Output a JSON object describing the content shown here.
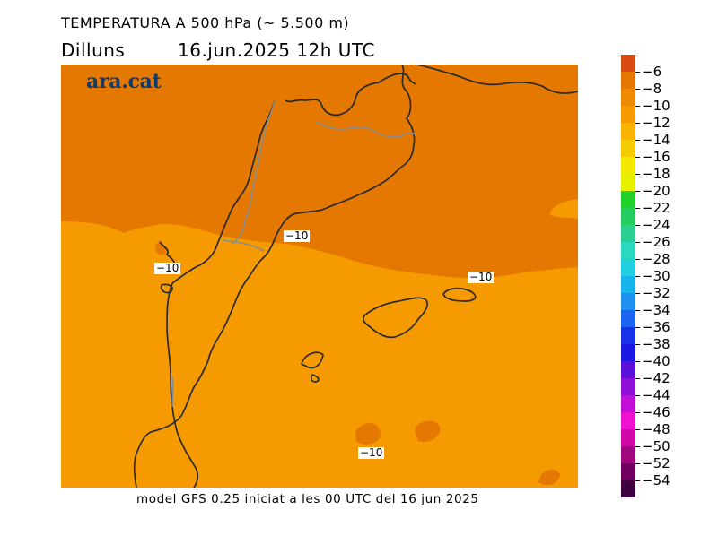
{
  "header": {
    "title": "TEMPERATURA A 500 hPa (~ 5.500 m)",
    "day": "Dilluns",
    "datetime": "16.jun.2025  12h  UTC"
  },
  "brand": {
    "logo_text": "ara.cat"
  },
  "footer": {
    "text": "model GFS 0.25 iniciat a les 00 UTC del 16 jun 2025"
  },
  "map": {
    "colors": {
      "warm_band": "#E47800",
      "cool_band": "#F59A00",
      "coastline": "#2a2a2a",
      "border": "#8c8c8c"
    },
    "contour_labels": [
      "−10",
      "−10",
      "−10",
      "−10"
    ]
  },
  "colorbar": {
    "labels": [
      "−6",
      "−8",
      "−10",
      "−12",
      "−14",
      "−16",
      "−18",
      "−20",
      "−22",
      "−24",
      "−26",
      "−28",
      "−30",
      "−32",
      "−34",
      "−36",
      "−38",
      "−40",
      "−42",
      "−44",
      "−46",
      "−48",
      "−50",
      "−52",
      "−54"
    ],
    "colors": [
      "#D84A10",
      "#E47800",
      "#EE8A00",
      "#F59A00",
      "#F8B400",
      "#F5CC00",
      "#F5E800",
      "#E6F000",
      "#22D22A",
      "#25CC60",
      "#2AD090",
      "#2AD8C0",
      "#20D0E0",
      "#18B4EC",
      "#1E90F0",
      "#1A64F0",
      "#1830E8",
      "#1A18E0",
      "#5A10D8",
      "#9010D8",
      "#C010D8",
      "#F010D0",
      "#D008A8",
      "#A00880",
      "#700060",
      "#400040"
    ]
  }
}
